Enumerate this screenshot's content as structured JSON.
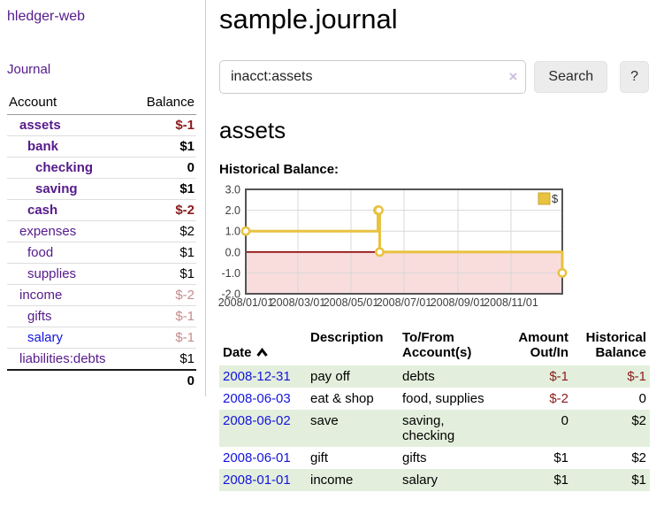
{
  "sidebar": {
    "brand": "hledger-web",
    "journal_link": "Journal",
    "accounts_table": {
      "headers": [
        "Account",
        "Balance"
      ],
      "rows": [
        {
          "name": "assets",
          "depth": 1,
          "bold": true,
          "balance": "$-1",
          "balance_style": "neg-strong"
        },
        {
          "name": "bank",
          "depth": 2,
          "bold": true,
          "balance": "$1",
          "balance_style": "pos"
        },
        {
          "name": "checking",
          "depth": 3,
          "bold": true,
          "balance": "0",
          "balance_style": "pos"
        },
        {
          "name": "saving",
          "depth": 3,
          "bold": true,
          "balance": "$1",
          "balance_style": "pos"
        },
        {
          "name": "cash",
          "depth": 2,
          "bold": true,
          "balance": "$-2",
          "balance_style": "neg-strong"
        },
        {
          "name": "expenses",
          "depth": 1,
          "bold": false,
          "balance": "$2",
          "balance_style": "pos"
        },
        {
          "name": "food",
          "depth": 2,
          "bold": false,
          "balance": "$1",
          "balance_style": "pos"
        },
        {
          "name": "supplies",
          "depth": 2,
          "bold": false,
          "balance": "$1",
          "balance_style": "pos"
        },
        {
          "name": "income",
          "depth": 1,
          "bold": false,
          "balance": "$-2",
          "balance_style": "neg-soft"
        },
        {
          "name": "gifts",
          "depth": 2,
          "bold": false,
          "balance": "$-1",
          "balance_style": "neg-soft"
        },
        {
          "name": "salary",
          "depth": 2,
          "bold": false,
          "balance": "$-1",
          "balance_style": "neg-soft",
          "link_color": "blue"
        },
        {
          "name": "liabilities:debts",
          "depth": 1,
          "bold": false,
          "balance": "$1",
          "balance_style": "pos"
        }
      ],
      "total": "0"
    }
  },
  "header": {
    "title": "sample.journal"
  },
  "search": {
    "value": "inacct:assets",
    "clear_icon": "×",
    "button_label": "Search",
    "help_label": "?"
  },
  "account_page": {
    "title": "assets",
    "chart_label": "Historical Balance:"
  },
  "chart_data": {
    "type": "line",
    "style": "step",
    "x_axis": {
      "start": "2008-01-01",
      "end": "2008-12-31",
      "days_total": 364,
      "tick_labels": [
        "2008/01/01",
        "2008/03/01",
        "2008/05/01",
        "2008/07/01",
        "2008/09/01",
        "2008/11/01"
      ],
      "tick_days": [
        0,
        60,
        121,
        182,
        244,
        305
      ]
    },
    "y_axis": {
      "min": -2.0,
      "max": 3.0,
      "tick_labels": [
        "3.0",
        "2.0",
        "1.0",
        "0.0",
        "-1.0",
        "-2.0"
      ],
      "tick_values": [
        3,
        2,
        1,
        0,
        -1,
        -2
      ]
    },
    "grid_color": "#d8d8d8",
    "border_color": "#545454",
    "negative_region_color": "#f9dddd",
    "zero_line_color": "#8b0000",
    "series": [
      {
        "name": "$",
        "color": "#e8c240",
        "marker_fill": "#ffffff",
        "points": [
          {
            "date": "2008-01-01",
            "day": 0,
            "value": 1
          },
          {
            "date": "2008-06-01",
            "day": 152,
            "value": 2
          },
          {
            "date": "2008-06-02",
            "day": 153,
            "value": 2
          },
          {
            "date": "2008-06-03",
            "day": 154,
            "value": 0
          },
          {
            "date": "2008-12-31",
            "day": 364,
            "value": -1
          }
        ]
      }
    ],
    "legend": {
      "position": "top-right",
      "entries": [
        {
          "label": "$",
          "color": "#e8c240"
        }
      ]
    }
  },
  "register_table": {
    "headers": {
      "date": "Date",
      "description": "Description",
      "accounts": "To/From\nAccount(s)",
      "amount": "Amount\nOut/In",
      "balance": "Historical\nBalance"
    },
    "rows": [
      {
        "date": "2008-12-31",
        "description": "pay off",
        "accounts": "debts",
        "amount": "$-1",
        "amount_style": "neg-strong",
        "balance": "$-1",
        "balance_style": "neg-strong"
      },
      {
        "date": "2008-06-03",
        "description": "eat & shop",
        "accounts": "food, supplies",
        "amount": "$-2",
        "amount_style": "neg-strong",
        "balance": "0",
        "balance_style": "pos"
      },
      {
        "date": "2008-06-02",
        "description": "save",
        "accounts": "saving,\nchecking",
        "amount": "0",
        "amount_style": "pos",
        "balance": "$2",
        "balance_style": "pos"
      },
      {
        "date": "2008-06-01",
        "description": "gift",
        "accounts": "gifts",
        "amount": "$1",
        "amount_style": "pos",
        "balance": "$2",
        "balance_style": "pos"
      },
      {
        "date": "2008-01-01",
        "description": "income",
        "accounts": "salary",
        "amount": "$1",
        "amount_style": "pos",
        "balance": "$1",
        "balance_style": "pos"
      }
    ]
  }
}
